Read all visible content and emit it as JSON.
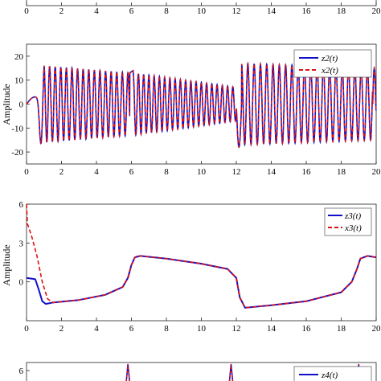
{
  "colors": {
    "estimate": "#1010c8",
    "state": "#e01010",
    "axis": "#222222"
  },
  "chart_data": [
    {
      "type": "line",
      "panel": "top-partial",
      "xlim": [
        0,
        20
      ],
      "x_ticks": [
        "0",
        "2",
        "4",
        "6",
        "8",
        "10",
        "12",
        "14",
        "16",
        "18",
        "20"
      ],
      "series": []
    },
    {
      "type": "line",
      "panel": "z2",
      "ylabel": "Amplitude",
      "xlim": [
        0,
        20
      ],
      "ylim": [
        -25,
        25
      ],
      "x_ticks": [
        "0",
        "2",
        "4",
        "6",
        "8",
        "10",
        "12",
        "14",
        "16",
        "18",
        "20"
      ],
      "y_ticks": [
        "-20",
        "-10",
        "0",
        "10",
        "20"
      ],
      "legend_position": "top-right",
      "series": [
        {
          "name": "z2(t)",
          "style": "solid",
          "color": "#1010c8"
        },
        {
          "name": "x2(t)",
          "style": "dashed",
          "color": "#e01010"
        }
      ],
      "waveform": {
        "segments": [
          {
            "x_start": 0.0,
            "x_end": 1.0,
            "amplitude_start": 3,
            "amplitude_end": 16,
            "period": 0.9,
            "note": "initial transient, dip near x=0.8 to about -18"
          },
          {
            "x_start": 1.0,
            "x_end": 5.9,
            "amplitude_start": 16,
            "amplitude_end": 13,
            "period": 0.32
          },
          {
            "x_start": 6.1,
            "x_end": 12.0,
            "amplitude_start": 13,
            "amplitude_end": 7,
            "period": 0.3
          },
          {
            "x_start": 12.3,
            "x_end": 19.8,
            "amplitude_start": 17,
            "amplitude_end": 15,
            "period": 0.36
          }
        ]
      }
    },
    {
      "type": "line",
      "panel": "z3",
      "ylabel": "Amplitude",
      "xlim": [
        0,
        20
      ],
      "ylim": [
        -3,
        6
      ],
      "x_ticks": [
        "0",
        "2",
        "4",
        "6",
        "8",
        "10",
        "12",
        "14",
        "16",
        "18",
        "20"
      ],
      "y_ticks": [
        "0",
        "3",
        "6"
      ],
      "legend_position": "top-right",
      "series": [
        {
          "name": "z3(t)",
          "style": "solid",
          "color": "#1010c8",
          "x": [
            0,
            0.5,
            0.7,
            0.9,
            1.1,
            1.5,
            3,
            4.5,
            5.5,
            5.8,
            6.0,
            6.2,
            6.5,
            8,
            10,
            11.5,
            12.0,
            12.2,
            12.5,
            14,
            16,
            18,
            18.6,
            18.9,
            19.1,
            19.5,
            20
          ],
          "y": [
            0.3,
            0.2,
            -0.6,
            -1.5,
            -1.7,
            -1.6,
            -1.4,
            -1.0,
            -0.4,
            0.3,
            1.3,
            1.9,
            2.0,
            1.8,
            1.4,
            1.0,
            0.3,
            -1.2,
            -2.0,
            -1.8,
            -1.5,
            -0.8,
            0.0,
            1.0,
            1.8,
            2.0,
            1.9
          ]
        },
        {
          "name": "x3(t)",
          "style": "dashed",
          "color": "#e01010",
          "x": [
            0,
            0.05,
            0.3,
            0.6,
            0.9,
            1.2,
            1.5,
            3,
            4.5,
            5.5,
            5.8,
            6.0,
            6.2,
            6.5,
            8,
            10,
            11.5,
            12.0,
            12.2,
            12.5,
            14,
            16,
            18,
            18.6,
            18.9,
            19.1,
            19.5,
            20
          ],
          "y": [
            6.0,
            4.5,
            3.5,
            2.0,
            0.0,
            -1.3,
            -1.6,
            -1.4,
            -1.0,
            -0.4,
            0.3,
            1.3,
            1.9,
            2.0,
            1.8,
            1.4,
            1.0,
            0.3,
            -1.2,
            -2.0,
            -1.8,
            -1.5,
            -0.8,
            0.0,
            1.0,
            1.8,
            2.0,
            1.9
          ]
        }
      ]
    },
    {
      "type": "line",
      "panel": "z4-partial",
      "xlim": [
        0,
        20
      ],
      "ylim": [
        -10,
        10
      ],
      "y_ticks": [
        "6"
      ],
      "legend_position": "top-right",
      "series": [
        {
          "name": "z4(t)",
          "style": "solid",
          "color": "#1010c8"
        },
        {
          "name": "x4(t)",
          "style": "dashed",
          "color": "#e01010"
        }
      ]
    }
  ]
}
